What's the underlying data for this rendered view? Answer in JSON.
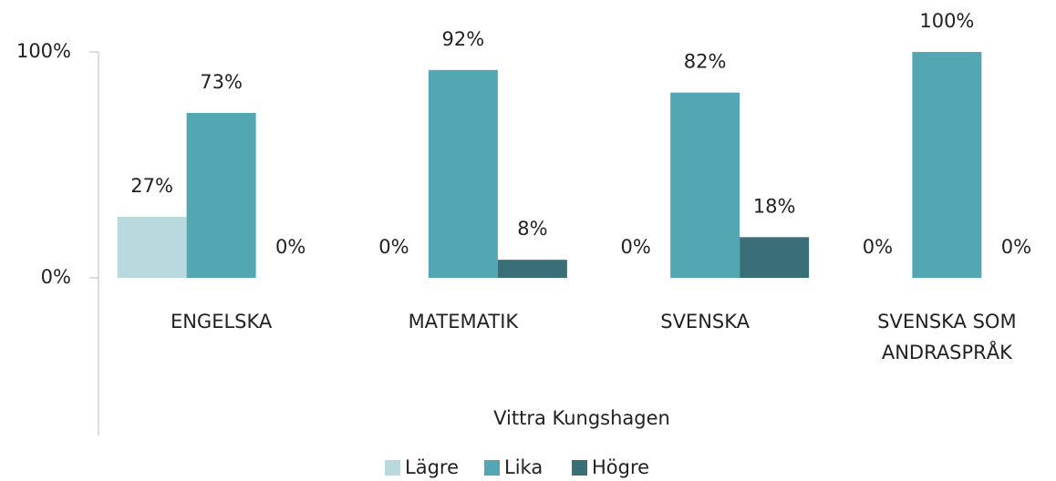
{
  "chart_data": {
    "type": "bar",
    "categories": [
      "ENGELSKA",
      "MATEMATIK",
      "SVENSKA",
      "SVENSKA SOM ANDRASPRÅK"
    ],
    "xlabel": "Vittra Kungshagen",
    "series": [
      {
        "name": "Lägre",
        "color": "#b8d9dd",
        "values": [
          27,
          0,
          0,
          0
        ],
        "value_labels": [
          "27%",
          "0%",
          "0%",
          "0%"
        ]
      },
      {
        "name": "Lika",
        "color": "#52a7b2",
        "values": [
          73,
          92,
          82,
          100
        ],
        "value_labels": [
          "73%",
          "92%",
          "82%",
          "100%"
        ]
      },
      {
        "name": "Högre",
        "color": "#3a6f77",
        "values": [
          0,
          8,
          18,
          0
        ],
        "value_labels": [
          "0%",
          "8%",
          "18%",
          "0%"
        ]
      }
    ],
    "ylim": [
      0,
      100
    ],
    "yticks": [
      {
        "value": 0,
        "label": "0%"
      },
      {
        "value": 100,
        "label": "100%"
      }
    ],
    "legend": "bottom"
  }
}
